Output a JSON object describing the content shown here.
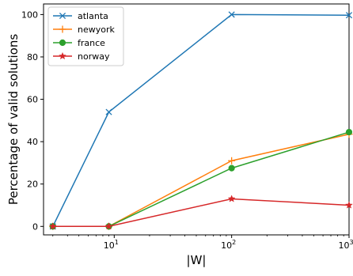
{
  "chart_data": {
    "type": "line",
    "title": "",
    "xlabel": "|W|",
    "ylabel": "Percentage of valid solutions",
    "x_scale": "log",
    "xlim": [
      2.5,
      1000
    ],
    "ylim": [
      -4,
      105
    ],
    "y_ticks": [
      0,
      20,
      40,
      60,
      80,
      100
    ],
    "x_ticks": [
      {
        "value": 10,
        "base": "10",
        "exp": "1"
      },
      {
        "value": 100,
        "base": "10",
        "exp": "2"
      },
      {
        "value": 1000,
        "base": "10",
        "exp": "3"
      }
    ],
    "grid": false,
    "legend_position": "top-left",
    "x": [
      3,
      9,
      100,
      1000
    ],
    "series": [
      {
        "name": "atlanta",
        "color": "#1f77b4",
        "marker": "x",
        "values": [
          0,
          54,
          100,
          99.7
        ]
      },
      {
        "name": "newyork",
        "color": "#ff7f0e",
        "marker": "plus",
        "values": [
          0,
          0,
          31,
          43.5
        ]
      },
      {
        "name": "france",
        "color": "#2ca02c",
        "marker": "circle",
        "values": [
          0,
          0,
          27.5,
          44.5
        ]
      },
      {
        "name": "norway",
        "color": "#d62728",
        "marker": "star",
        "values": [
          0,
          0,
          13,
          10
        ]
      }
    ]
  }
}
